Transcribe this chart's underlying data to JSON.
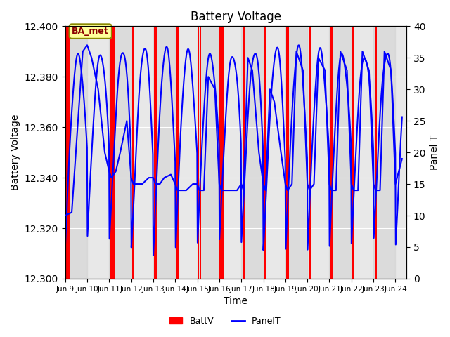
{
  "title": "Battery Voltage",
  "xlabel": "Time",
  "ylabel_left": "Battery Voltage",
  "ylabel_right": "Panel T",
  "xlim": [
    0,
    15.5
  ],
  "ylim_left": [
    12.3,
    12.4
  ],
  "ylim_right": [
    0,
    40
  ],
  "x_tick_labels": [
    "Jun 9",
    "Jun 10",
    "Jun 11",
    "Jun 12",
    "Jun 13",
    "Jun 14",
    "Jun 15",
    "Jun 16",
    "Jun 17",
    "Jun 18",
    "Jun 19",
    "Jun 20",
    "Jun 21",
    "Jun 22",
    "Jun 23",
    "Jun 24"
  ],
  "bg_color": "#e8e8e8",
  "annotation_text": "BA_met",
  "annotation_bg": "#ffff99",
  "annotation_border": "#8b8b00",
  "red_line_color": "#ff0000",
  "blue_line_color": "#0000ff",
  "red_regions": [
    [
      0.05,
      0.25
    ],
    [
      2.05,
      2.25
    ],
    [
      3.05,
      3.15
    ],
    [
      4.05,
      4.15
    ],
    [
      5.05,
      5.15
    ],
    [
      6.0,
      6.08
    ],
    [
      6.1,
      6.18
    ],
    [
      7.0,
      7.08
    ],
    [
      7.1,
      7.18
    ],
    [
      8.05,
      8.15
    ],
    [
      9.05,
      9.15
    ],
    [
      10.05,
      10.15
    ],
    [
      11.05,
      11.15
    ],
    [
      12.05,
      12.15
    ],
    [
      13.05,
      13.15
    ],
    [
      14.05,
      14.15
    ]
  ],
  "panel_t_x": [
    0,
    0.3,
    0.8,
    1.0,
    1.2,
    1.5,
    1.8,
    2.0,
    2.1,
    2.3,
    2.5,
    2.8,
    3.0,
    3.1,
    3.3,
    3.5,
    3.8,
    4.0,
    4.1,
    4.3,
    4.5,
    4.8,
    5.0,
    5.1,
    5.3,
    5.5,
    5.8,
    6.0,
    6.1,
    6.3,
    6.5,
    6.8,
    7.0,
    7.1,
    7.3,
    7.5,
    7.8,
    8.0,
    8.1,
    8.3,
    8.5,
    8.8,
    9.0,
    9.1,
    9.3,
    9.5,
    9.8,
    10.0,
    10.1,
    10.3,
    10.5,
    10.8,
    11.0,
    11.1,
    11.3,
    11.5,
    11.8,
    12.0,
    12.1,
    12.3,
    12.5,
    12.8,
    13.0,
    13.1,
    13.3,
    13.5,
    13.8,
    14.0,
    14.1,
    14.3,
    14.5,
    14.8,
    15.0,
    15.3
  ],
  "panel_t_y": [
    10,
    10.5,
    36,
    37,
    35,
    30,
    20,
    17,
    16,
    17,
    20,
    25,
    16,
    15,
    15,
    15,
    16,
    16,
    15,
    15,
    16,
    16.5,
    15,
    14,
    14,
    14,
    15,
    15,
    14,
    14,
    32,
    30,
    15,
    14,
    14,
    14,
    14,
    15,
    14,
    35,
    33,
    20,
    15,
    14,
    30,
    28,
    20,
    15,
    14,
    15,
    36,
    33,
    15,
    14,
    15,
    35,
    33,
    15,
    14,
    14,
    36,
    33,
    15,
    14,
    14,
    36,
    33,
    15,
    14,
    14,
    36,
    33,
    15,
    19
  ]
}
